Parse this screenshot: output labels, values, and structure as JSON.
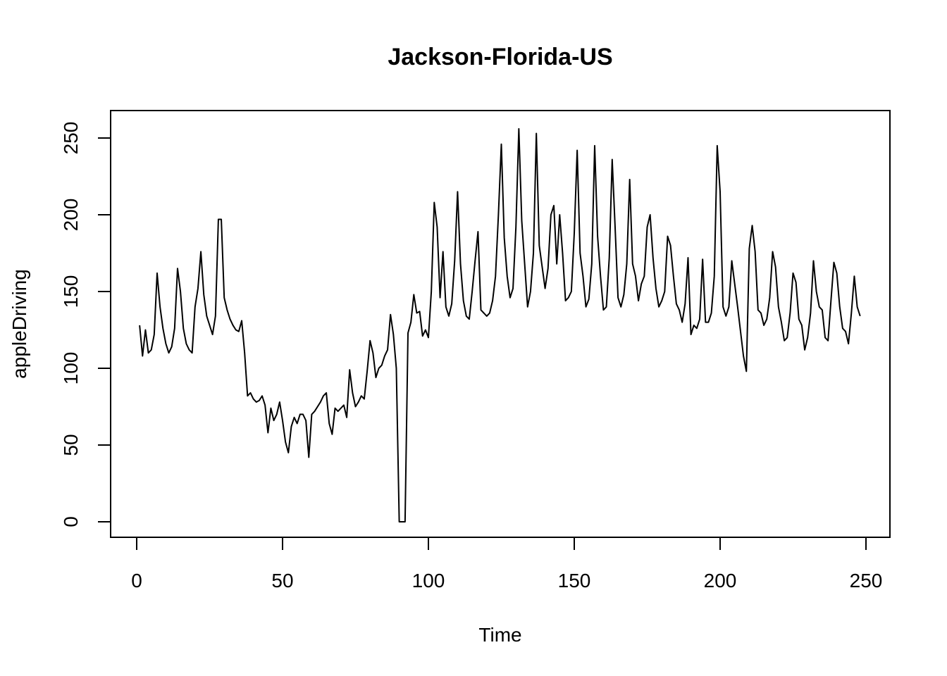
{
  "chart_data": {
    "type": "line",
    "title": "Jackson-Florida-US",
    "xlabel": "Time",
    "ylabel": "appleDriving",
    "xlim": [
      1,
      250
    ],
    "ylim": [
      0,
      258
    ],
    "x_ticks": [
      0,
      50,
      100,
      150,
      200,
      250
    ],
    "y_ticks": [
      0,
      50,
      100,
      150,
      200,
      250
    ],
    "grid": false,
    "legend": "none",
    "line_color": "#000000",
    "series": [
      {
        "x_start": 1,
        "values": [
          128,
          108,
          125,
          110,
          112,
          122,
          162,
          140,
          126,
          116,
          110,
          114,
          126,
          165,
          150,
          126,
          116,
          112,
          110,
          140,
          152,
          176,
          148,
          134,
          128,
          122,
          134,
          197,
          197,
          146,
          138,
          132,
          128,
          125,
          124,
          131,
          110,
          82,
          84,
          80,
          78,
          79,
          82,
          76,
          58,
          74,
          66,
          70,
          78,
          66,
          52,
          45,
          62,
          68,
          64,
          70,
          70,
          66,
          42,
          70,
          72,
          75,
          78,
          82,
          84,
          64,
          57,
          74,
          72,
          74,
          76,
          68,
          99,
          84,
          75,
          78,
          82,
          80,
          98,
          118,
          110,
          94,
          100,
          102,
          108,
          112,
          135,
          122,
          100,
          0,
          0,
          0,
          123,
          130,
          148,
          136,
          137,
          121,
          125,
          120,
          150,
          208,
          192,
          146,
          176,
          140,
          134,
          142,
          170,
          215,
          168,
          144,
          134,
          132,
          150,
          170,
          189,
          138,
          136,
          134,
          136,
          144,
          160,
          200,
          246,
          185,
          160,
          146,
          152,
          192,
          256,
          196,
          168,
          140,
          150,
          175,
          253,
          180,
          166,
          152,
          165,
          200,
          206,
          168,
          200,
          175,
          144,
          146,
          150,
          188,
          242,
          175,
          160,
          140,
          145,
          168,
          245,
          186,
          160,
          138,
          140,
          172,
          236,
          192,
          146,
          140,
          148,
          168,
          223,
          168,
          160,
          144,
          155,
          160,
          192,
          200,
          172,
          152,
          140,
          144,
          150,
          186,
          180,
          160,
          142,
          138,
          130,
          142,
          172,
          122,
          128,
          126,
          132,
          171,
          130,
          130,
          136,
          160,
          245,
          215,
          140,
          134,
          140,
          170,
          155,
          140,
          124,
          108,
          98,
          178,
          193,
          176,
          138,
          136,
          128,
          132,
          146,
          176,
          166,
          140,
          130,
          118,
          120,
          136,
          162,
          156,
          132,
          128,
          112,
          120,
          136,
          170,
          150,
          140,
          138,
          120,
          118,
          144,
          169,
          162,
          140,
          126,
          124,
          116,
          136,
          160,
          140,
          134
        ]
      }
    ]
  }
}
